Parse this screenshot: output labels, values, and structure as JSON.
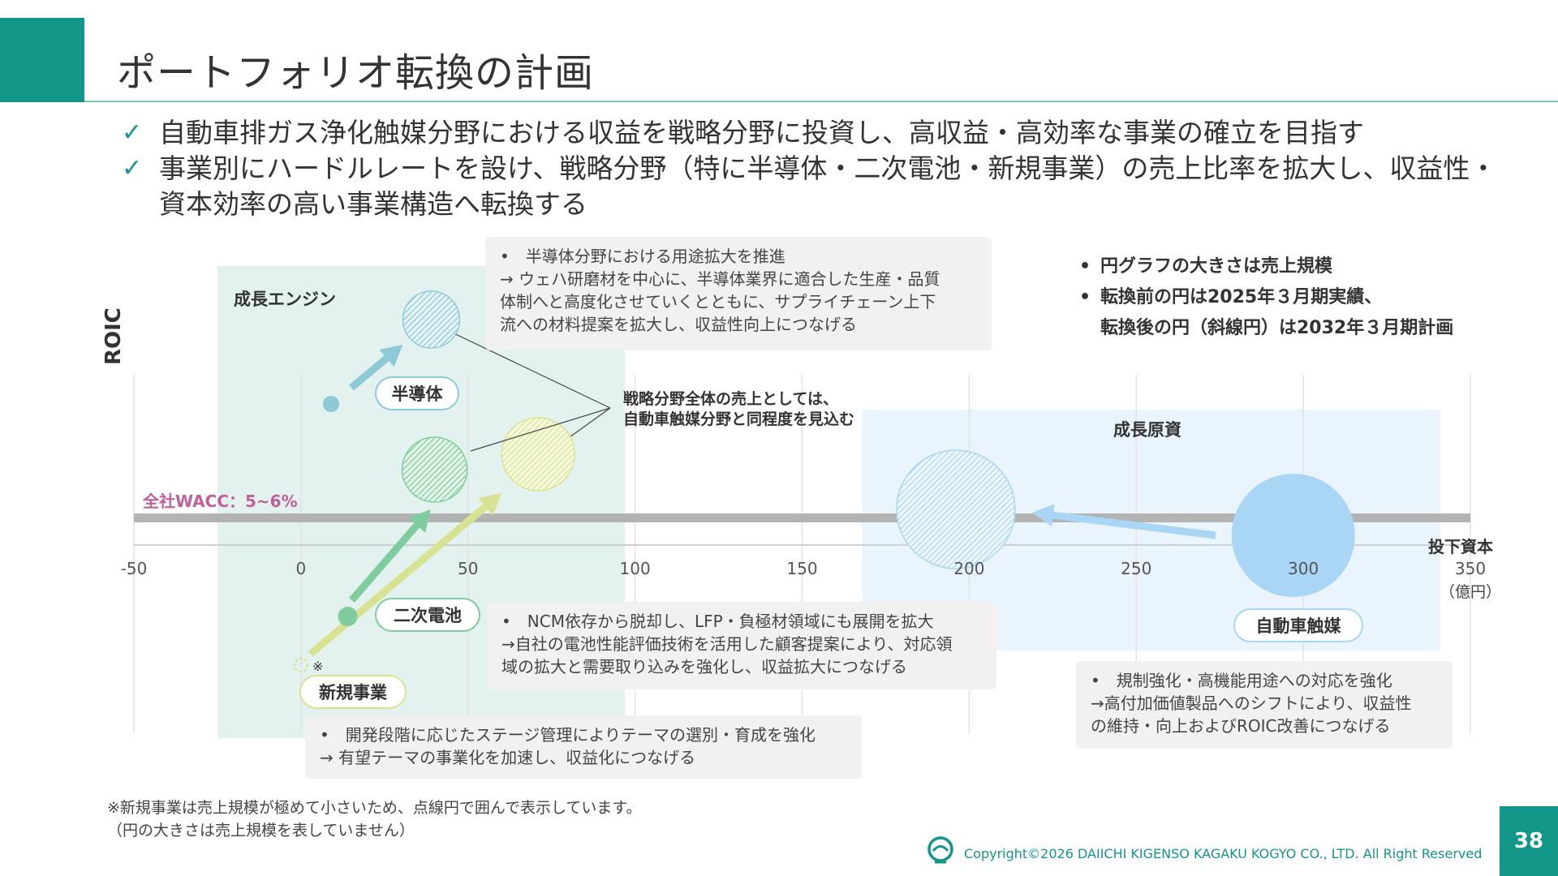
{
  "page": {
    "title": "ポートフォリオ転換の計画",
    "number": "38",
    "copyright": "Copyright©2026 DAIICHI KIGENSO KAGAKU KOGYO CO., LTD. All Right Reserved",
    "accent_color": "#129688"
  },
  "bullets": [
    "自動車排ガス浄化触媒分野における収益を戦略分野に投資し、高収益・高効率な事業の確立を目指す",
    "事業別にハードルレートを設け、戦略分野（特に半導体・二次電池・新規事業）の売上比率を拡大し、収益性・",
    "資本効率の高い事業構造へ転換する"
  ],
  "legend_notes": [
    "円グラフの大きさは売上規模",
    "転換前の円は2025年３月期実績、",
    "転換後の円（斜線円）は2032年３月期計画"
  ],
  "strategic_note": [
    "戦略分野全体の売上としては、",
    "自動車触媒分野と同程度を見込む"
  ],
  "notes": {
    "semiconductor": [
      "•　半導体分野における用途拡大を推進",
      "→ ウェハ研磨材を中心に、半導体業界に適合した生産・品質",
      "体制へと高度化させていくとともに、サプライチェーン上下",
      "流への材料提案を拡大し、収益性向上につなげる"
    ],
    "battery": [
      "•　NCM依存から脱却し、LFP・負極材領域にも展開を拡大",
      "→自社の電池性能評価技術を活用した顧客提案により、対応領",
      "域の拡大と需要取り込みを強化し、収益拡大につなげる"
    ],
    "new_business": [
      "•　開発段階に応じたステージ管理によりテーマの選別・育成を強化",
      "→ 有望テーマの事業化を加速し、収益化につなげる"
    ],
    "auto_catalyst": [
      "•　規制強化・高機能用途への対応を強化",
      "→高付加価値製品へのシフトにより、収益性",
      "の維持・向上およびROIC改善につなげる"
    ]
  },
  "footnote": [
    "※新規事業は売上規模が極めて小さいため、点線円で囲んで表示しています。",
    "（円の大きさは売上規模を表していません）"
  ],
  "chart_data": {
    "type": "scatter",
    "ylabel": "ROIC",
    "xlabel": "投下資本",
    "x_unit": "（億円）",
    "xlim": [
      -50,
      350
    ],
    "x_ticks": [
      -50,
      0,
      50,
      100,
      150,
      200,
      250,
      300,
      350
    ],
    "wacc_label": "全社WACC：5~6%",
    "zones": [
      {
        "name": "成長エンジン",
        "x_range": [
          -25,
          97
        ],
        "color": "#e3f2ef"
      },
      {
        "name": "成長原資",
        "x_range": [
          168,
          341
        ],
        "color": "#eaf4fc"
      }
    ],
    "series": [
      {
        "name": "半導体",
        "before": {
          "x": 9
        },
        "after": {
          "x": 39
        },
        "color": "#8ec9d6"
      },
      {
        "name": "二次電池",
        "before": {
          "x": 14
        },
        "after": {
          "x": 40
        },
        "color": "#7fcc9f"
      },
      {
        "name": "新規事業",
        "before": {
          "x": 0
        },
        "after": {
          "x": 71
        },
        "color": "#d8e391",
        "note_mark": "※"
      },
      {
        "name": "自動車触媒",
        "before": {
          "x": 297
        },
        "after": {
          "x": 196
        },
        "color": "#a9d6f5"
      }
    ]
  }
}
